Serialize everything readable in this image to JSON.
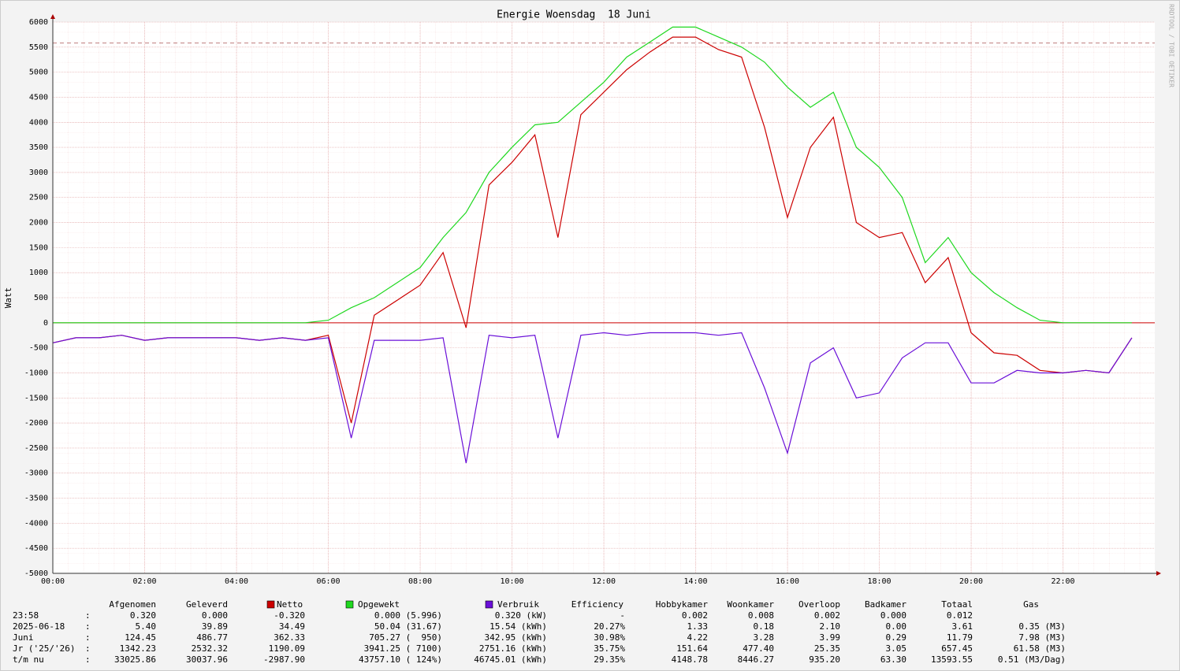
{
  "chart_data": {
    "type": "line",
    "title": "Energie Woensdag  18 Juni",
    "y_label": "Watt",
    "watermark": "RRDTOOL / TOBI OETIKER",
    "x": [
      0,
      0.5,
      1,
      1.5,
      2,
      2.5,
      3,
      3.5,
      4,
      4.5,
      5,
      5.5,
      6,
      6.5,
      7,
      7.5,
      8,
      8.5,
      9,
      9.5,
      10,
      10.5,
      11,
      11.5,
      12,
      12.5,
      13,
      13.5,
      14,
      14.5,
      15,
      15.5,
      16,
      16.5,
      17,
      17.5,
      18,
      18.5,
      19,
      19.5,
      20,
      20.5,
      21,
      21.5,
      22,
      22.5,
      23,
      23.5
    ],
    "series": [
      {
        "name": "Opgewekt",
        "color": "#1fd81f",
        "values": [
          0,
          0,
          0,
          0,
          0,
          0,
          0,
          0,
          0,
          0,
          0,
          0,
          50,
          300,
          500,
          800,
          1100,
          1700,
          2200,
          3000,
          3500,
          3950,
          4000,
          4400,
          4800,
          5300,
          5600,
          5900,
          5900,
          5700,
          5500,
          5200,
          4700,
          4300,
          4600,
          3500,
          3100,
          2500,
          1200,
          1700,
          1000,
          600,
          300,
          50,
          0,
          0,
          0,
          0
        ]
      },
      {
        "name": "Netto",
        "color": "#cc0000",
        "values": [
          -400,
          -300,
          -300,
          -250,
          -350,
          -300,
          -300,
          -300,
          -300,
          -350,
          -300,
          -350,
          -250,
          -2000,
          150,
          450,
          750,
          1400,
          -100,
          2750,
          3200,
          3750,
          1700,
          4150,
          4600,
          5050,
          5400,
          5700,
          5700,
          5450,
          5300,
          3900,
          2100,
          3500,
          4100,
          2000,
          1700,
          1800,
          800,
          1300,
          -200,
          -600,
          -650,
          -950,
          -1000,
          -950,
          -1000,
          -300
        ]
      },
      {
        "name": "Verbruik",
        "color": "#6a0fd8",
        "values": [
          -400,
          -300,
          -300,
          -250,
          -350,
          -300,
          -300,
          -300,
          -300,
          -350,
          -300,
          -350,
          -300,
          -2300,
          -350,
          -350,
          -350,
          -300,
          -2800,
          -250,
          -300,
          -250,
          -2300,
          -250,
          -200,
          -250,
          -200,
          -200,
          -200,
          -250,
          -200,
          -1300,
          -2600,
          -800,
          -500,
          -1500,
          -1400,
          -700,
          -400,
          -400,
          -1200,
          -1200,
          -950,
          -1000,
          -1000,
          -950,
          -1000,
          -300
        ]
      }
    ],
    "xlim": [
      0,
      24
    ],
    "xticks": [
      {
        "value": 0,
        "label": "00:00"
      },
      {
        "value": 2,
        "label": "02:00"
      },
      {
        "value": 4,
        "label": "04:00"
      },
      {
        "value": 6,
        "label": "06:00"
      },
      {
        "value": 8,
        "label": "08:00"
      },
      {
        "value": 10,
        "label": "10:00"
      },
      {
        "value": 12,
        "label": "12:00"
      },
      {
        "value": 14,
        "label": "14:00"
      },
      {
        "value": 16,
        "label": "16:00"
      },
      {
        "value": 18,
        "label": "18:00"
      },
      {
        "value": 20,
        "label": "20:00"
      },
      {
        "value": 22,
        "label": "22:00"
      }
    ],
    "ylim": [
      -5000,
      6000
    ],
    "yticks": [
      -5000,
      -4500,
      -4000,
      -3500,
      -3000,
      -2500,
      -2000,
      -1500,
      -1000,
      -500,
      0,
      500,
      1000,
      1500,
      2000,
      2500,
      3000,
      3500,
      4000,
      4500,
      5000,
      5500,
      6000
    ],
    "max_line": 5580,
    "zero_line_color": "#cc0000",
    "grid": true
  },
  "table": {
    "separator": ":",
    "headers": [
      "Afgenomen",
      "Geleverd",
      "Netto",
      "Opgewekt",
      "Verbruik",
      "Efficiency",
      "Hobbykamer",
      "Woonkamer",
      "Overloop",
      "Badkamer",
      "Totaal",
      "Gas"
    ],
    "rows": [
      {
        "label": "23:58",
        "cells": [
          "0.320",
          "0.000",
          "-0.320",
          "0.000 (5.996)",
          "0.320 (kW)",
          "-",
          "0.002",
          "0.008",
          "0.002",
          "0.000",
          "0.012",
          null
        ]
      },
      {
        "label": "2025-06-18",
        "cells": [
          "5.40",
          "39.89",
          "34.49",
          "50.04 (31.67)",
          "15.54 (kWh)",
          "20.27%",
          "1.33",
          "0.18",
          "2.10",
          "0.00",
          "3.61",
          "0.35 (M3)"
        ]
      },
      {
        "label": "Juni",
        "cells": [
          "124.45",
          "486.77",
          "362.33",
          "705.27 (  950)",
          "342.95 (kWh)",
          "30.98%",
          "4.22",
          "3.28",
          "3.99",
          "0.29",
          "11.79",
          "7.98 (M3)"
        ]
      },
      {
        "label": "Jr ('25/'26)",
        "cells": [
          "1342.23",
          "2532.32",
          "1190.09",
          "3941.25 ( 7100)",
          "2751.16 (kWh)",
          "35.75%",
          "151.64",
          "477.40",
          "25.35",
          "3.05",
          "657.45",
          "61.58 (M3)"
        ]
      },
      {
        "label": "t/m nu",
        "cells": [
          "33025.86",
          "30037.96",
          "-2987.90",
          "43757.10 ( 124%)",
          "46745.01 (kWh)",
          "29.35%",
          "4148.78",
          "8446.27",
          "935.20",
          "63.30",
          "13593.55",
          "0.51 (M3/Dag)"
        ]
      }
    ]
  }
}
